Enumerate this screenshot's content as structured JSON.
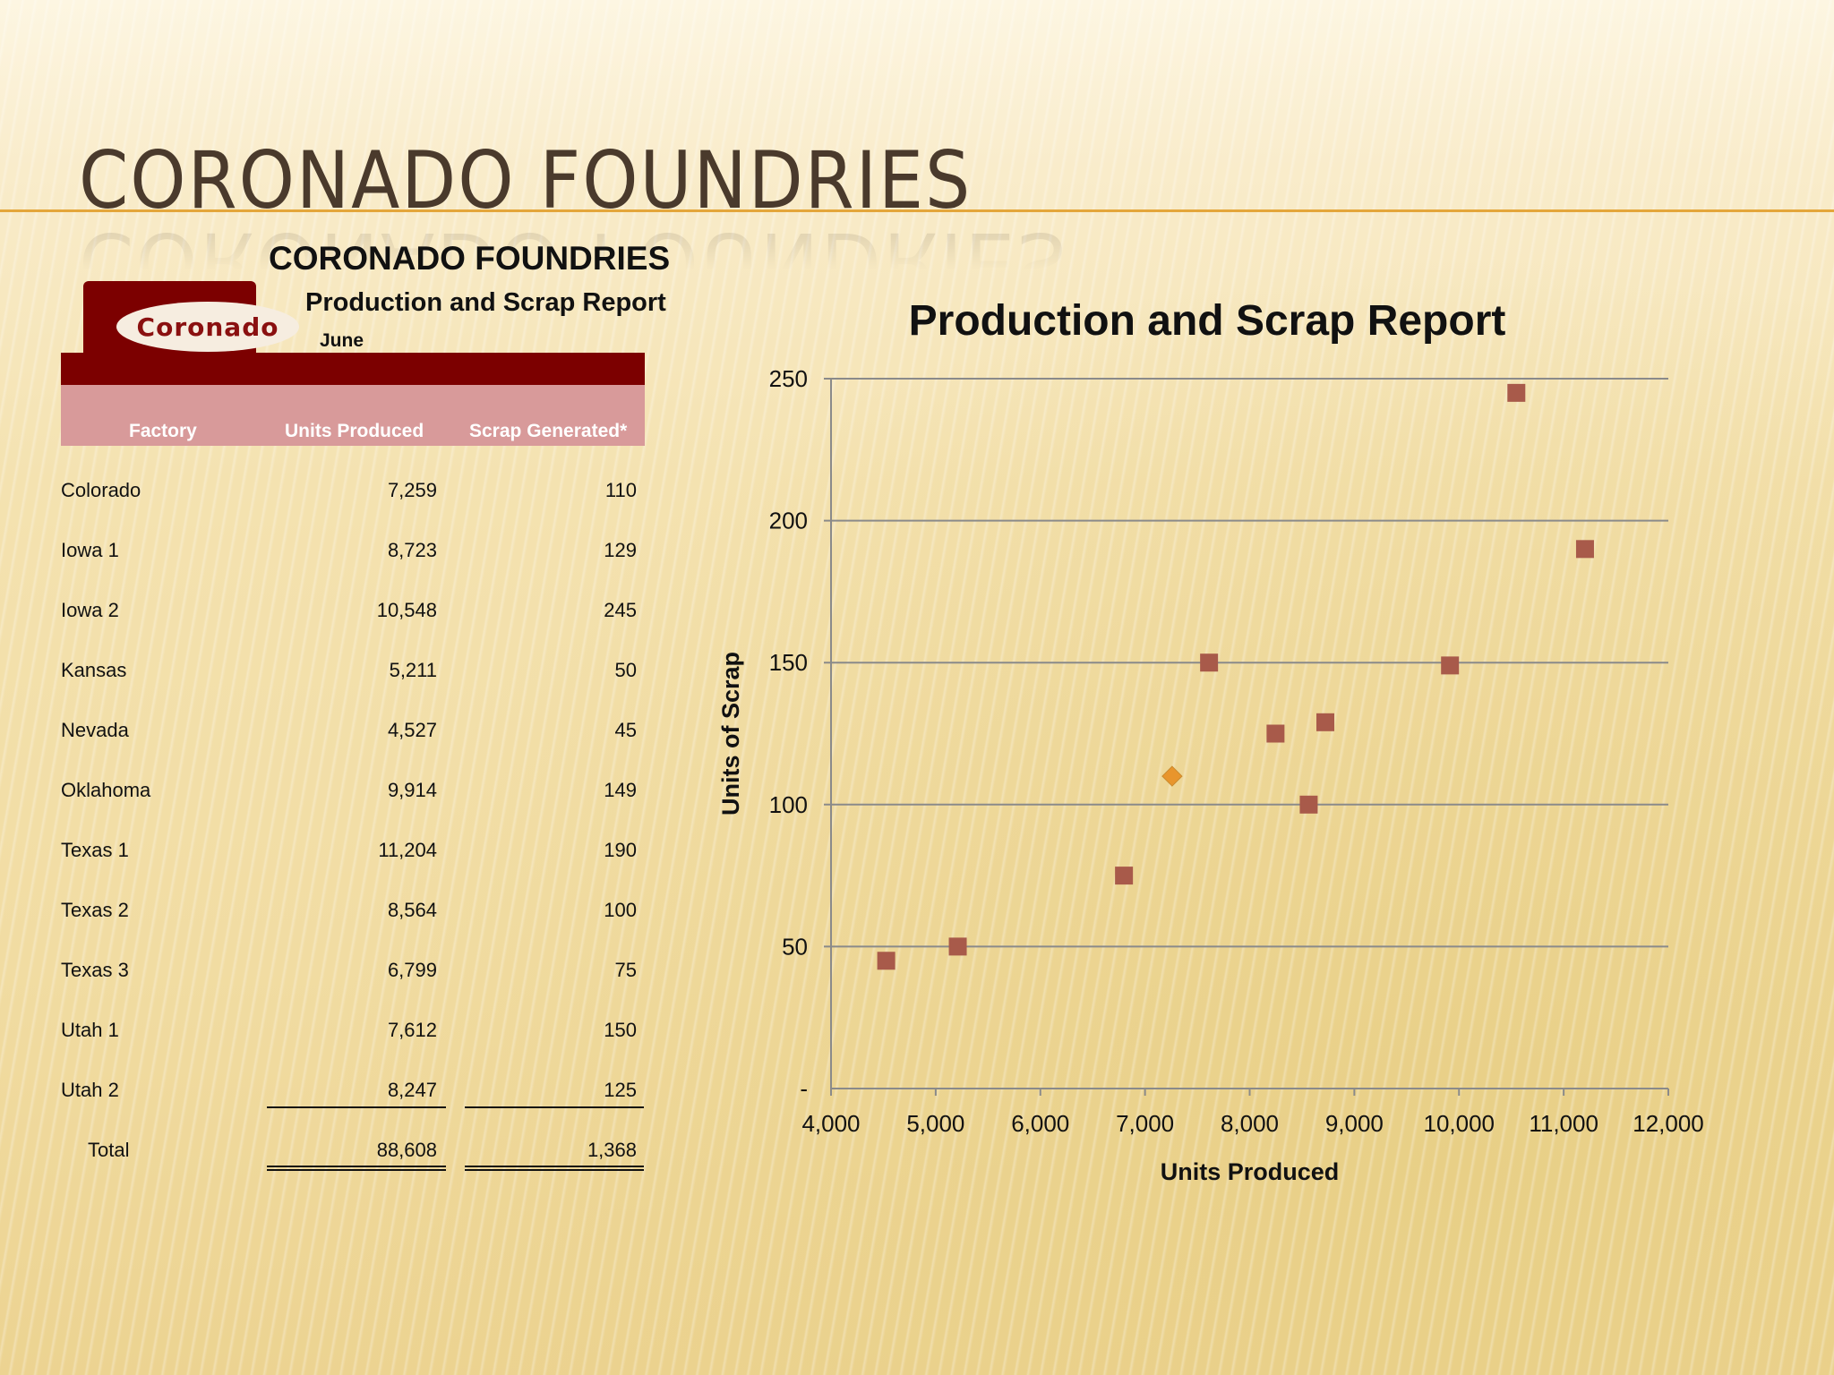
{
  "slide": {
    "title": "CORONADO FOUNDRIES"
  },
  "report": {
    "company": "CORONADO FOUNDRIES",
    "subtitle": "Production and Scrap Report",
    "month": "June",
    "logo_text": "Coronado",
    "headers": [
      "Factory",
      "Units Produced",
      "Scrap Generated*"
    ],
    "rows": [
      {
        "factory": "Colorado",
        "units": "7,259",
        "scrap": "110"
      },
      {
        "factory": "Iowa 1",
        "units": "8,723",
        "scrap": "129"
      },
      {
        "factory": "Iowa 2",
        "units": "10,548",
        "scrap": "245"
      },
      {
        "factory": "Kansas",
        "units": "5,211",
        "scrap": "50"
      },
      {
        "factory": "Nevada",
        "units": "4,527",
        "scrap": "45"
      },
      {
        "factory": "Oklahoma",
        "units": "9,914",
        "scrap": "149"
      },
      {
        "factory": "Texas 1",
        "units": "11,204",
        "scrap": "190"
      },
      {
        "factory": "Texas 2",
        "units": "8,564",
        "scrap": "100"
      },
      {
        "factory": "Texas 3",
        "units": "6,799",
        "scrap": "75"
      },
      {
        "factory": "Utah  1",
        "units": "7,612",
        "scrap": "150"
      },
      {
        "factory": "Utah  2",
        "units": "8,247",
        "scrap": "125"
      }
    ],
    "total": {
      "label": "Total",
      "units": "88,608",
      "scrap": "1,368"
    }
  },
  "colors": {
    "marker": "#a85a4a",
    "highlight_marker": "#e8952c",
    "logo_dark": "#7c0000",
    "header_pink": "#d89a9a",
    "title_rule": "#e4a63a",
    "gridline": "#8a8a8a"
  },
  "chart_data": {
    "type": "scatter",
    "title": "Production and Scrap Report",
    "xlabel": "Units Produced",
    "ylabel": "Units of Scrap",
    "xlim": [
      4000,
      12000
    ],
    "ylim": [
      0,
      250
    ],
    "x_ticks": [
      "4,000",
      "5,000",
      "6,000",
      "7,000",
      "8,000",
      "9,000",
      "10,000",
      "11,000",
      "12,000"
    ],
    "y_ticks": [
      "-",
      "50",
      "100",
      "150",
      "200",
      "250"
    ],
    "grid": "horizontal",
    "series": [
      {
        "marker": "square",
        "points": [
          {
            "x": 8723,
            "y": 129
          },
          {
            "x": 10548,
            "y": 245
          },
          {
            "x": 5211,
            "y": 50
          },
          {
            "x": 4527,
            "y": 45
          },
          {
            "x": 9914,
            "y": 149
          },
          {
            "x": 11204,
            "y": 190
          },
          {
            "x": 8564,
            "y": 100
          },
          {
            "x": 6799,
            "y": 75
          },
          {
            "x": 7612,
            "y": 150
          },
          {
            "x": 8247,
            "y": 125
          }
        ]
      },
      {
        "marker": "diamond",
        "points": [
          {
            "x": 7259,
            "y": 110
          }
        ]
      }
    ]
  }
}
